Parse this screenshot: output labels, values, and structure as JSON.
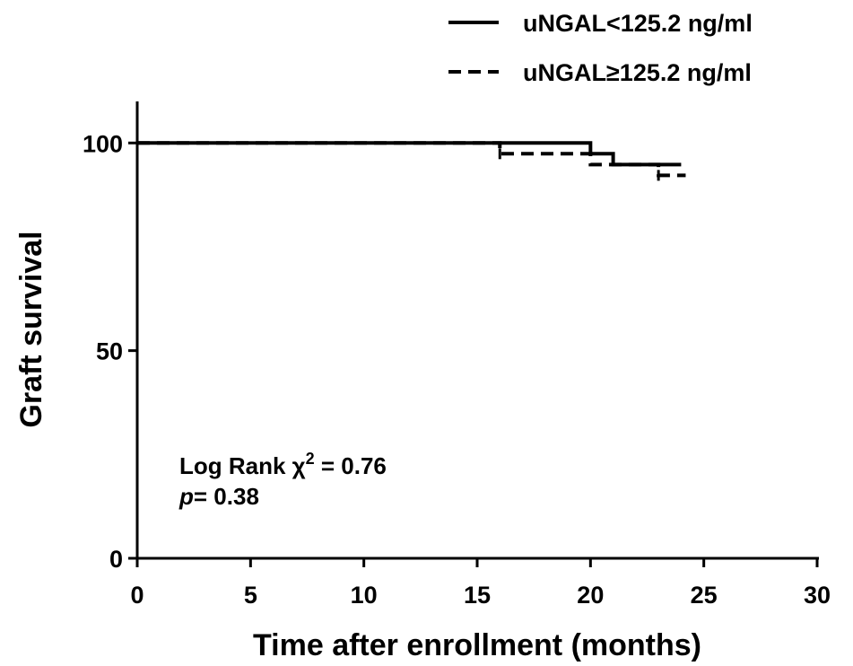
{
  "chart_data": {
    "type": "line",
    "subtype": "kaplan-meier step",
    "title": "",
    "xlabel": "Time after enrollment (months)",
    "ylabel": "Graft survival",
    "xlim": [
      0,
      30
    ],
    "ylim": [
      0,
      110
    ],
    "xticks": [
      0,
      5,
      10,
      15,
      20,
      25,
      30
    ],
    "yticks": [
      0,
      50,
      100
    ],
    "grid": false,
    "legend_position": "top-right",
    "series": [
      {
        "name": "uNGAL<125.2 ng/ml",
        "line_style": "solid",
        "steps": [
          {
            "x": 0,
            "y": 100
          },
          {
            "x": 20,
            "y": 97.4
          },
          {
            "x": 21,
            "y": 94.8
          },
          {
            "x": 24,
            "y": 94.8
          }
        ],
        "censor_marks": []
      },
      {
        "name": "uNGAL≥125.2 ng/ml",
        "line_style": "dashed",
        "steps": [
          {
            "x": 0,
            "y": 100
          },
          {
            "x": 16,
            "y": 97.4
          },
          {
            "x": 20,
            "y": 94.8
          },
          {
            "x": 23,
            "y": 92.2
          },
          {
            "x": 24.2,
            "y": 92.2
          }
        ],
        "censor_marks": [
          {
            "x": 16,
            "y": 97.4
          },
          {
            "x": 23,
            "y": 92.2
          }
        ]
      }
    ],
    "annotations": {
      "stat_label": "Log Rank χ",
      "stat_superscript": "2",
      "stat_value": " = 0.76",
      "p_label": "p",
      "p_value": "= 0.38"
    }
  }
}
